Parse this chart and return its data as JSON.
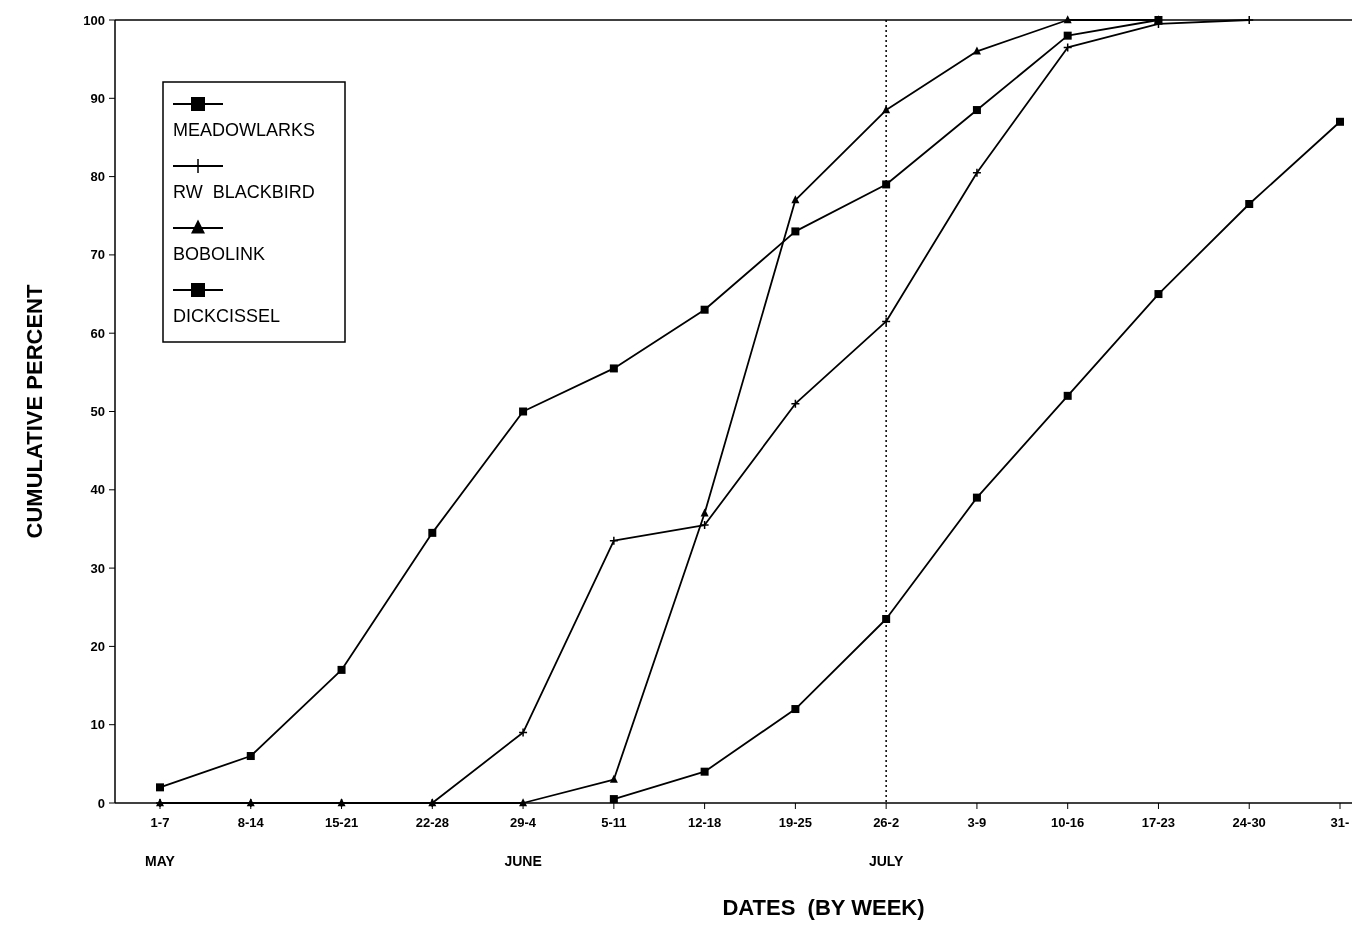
{
  "chart_data": {
    "type": "line",
    "xlabel": "DATES  (BY WEEK)",
    "ylabel": "CUMULATIVE PERCENT",
    "categories": [
      "1-7",
      "8-14",
      "15-21",
      "22-28",
      "29-4",
      "5-11",
      "12-18",
      "19-25",
      "26-2",
      "3-9",
      "10-16",
      "17-23",
      "24-30",
      "31-"
    ],
    "series": [
      {
        "name": "MEADOWLARKS",
        "color": "#000000",
        "marker": "square",
        "values": [
          2,
          6,
          17,
          34.5,
          50,
          55.5,
          63,
          73,
          79,
          88.5,
          98,
          100,
          null,
          null
        ]
      },
      {
        "name": "RW  BLACKBIRD",
        "color": "#000000",
        "marker": "cross",
        "values": [
          0,
          0,
          0,
          0,
          9,
          33.5,
          35.5,
          51,
          61.5,
          80.5,
          96.5,
          99.5,
          100,
          null
        ]
      },
      {
        "name": "BOBOLINK",
        "color": "#000000",
        "marker": "triangle",
        "values": [
          0,
          0,
          0,
          0,
          0,
          3,
          37,
          77,
          88.5,
          96,
          100,
          100,
          null,
          null
        ]
      },
      {
        "name": "DICKCISSEL",
        "color": "#000000",
        "marker": "square",
        "values": [
          null,
          null,
          null,
          null,
          null,
          0.5,
          4,
          12,
          23.5,
          39,
          52,
          65,
          76.5,
          87
        ]
      }
    ],
    "ylim": [
      0,
      100
    ],
    "yticks": [
      0,
      10,
      20,
      30,
      40,
      50,
      60,
      70,
      80,
      90,
      100
    ],
    "grid": false,
    "legend": "top left",
    "ref_lines": [
      {
        "axis": "x",
        "value": "26-2",
        "line_style": "dotted",
        "color": "#000000"
      }
    ],
    "annotations": [
      "MAY",
      "JUNE",
      "JULY"
    ]
  }
}
